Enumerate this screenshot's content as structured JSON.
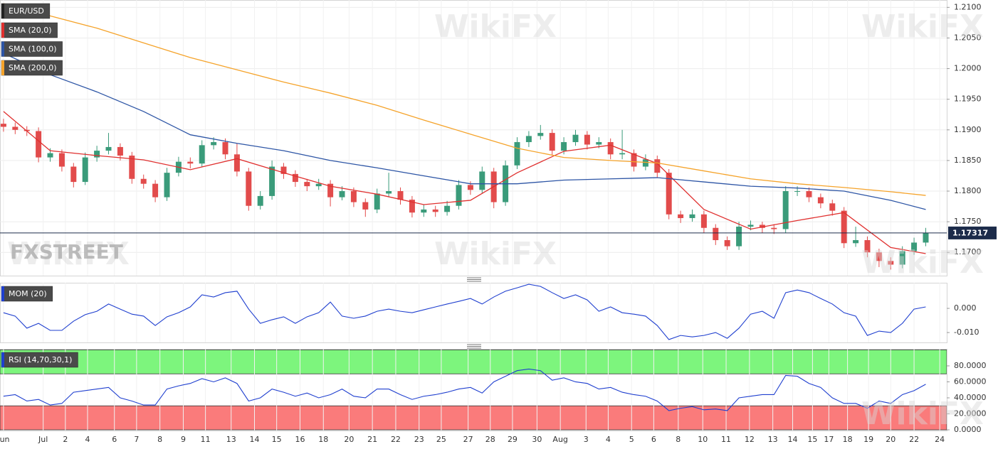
{
  "watermarks": [
    "FXSTREET",
    "WikiFX"
  ],
  "chart_data": [
    {
      "type": "candlestick",
      "title": "EUR/USD",
      "up_color": "#3a9b7a",
      "down_color": "#e24b4b",
      "xlim": [
        -0.3,
        80.8
      ],
      "ylim": [
        1.1662,
        1.2112
      ],
      "yticks": [
        {
          "value": 1.17,
          "label": "1.1700"
        },
        {
          "value": 1.175,
          "label": "1.1750"
        },
        {
          "value": 1.18,
          "label": "1.1800"
        },
        {
          "value": 1.185,
          "label": "1.1850"
        },
        {
          "value": 1.19,
          "label": "1.1900"
        },
        {
          "value": 1.195,
          "label": "1.1950"
        },
        {
          "value": 1.2,
          "label": "1.2000"
        },
        {
          "value": 1.205,
          "label": "1.2050"
        },
        {
          "value": 1.21,
          "label": "1.2100"
        }
      ],
      "grid": true,
      "last_price": {
        "value": 1.17317,
        "label": "1.17317"
      },
      "candles": [
        [
          1.191,
          1.1918,
          1.1897,
          1.1905
        ],
        [
          1.1905,
          1.1912,
          1.1893,
          1.19
        ],
        [
          1.19,
          1.1906,
          1.189,
          1.1898
        ],
        [
          1.1898,
          1.1904,
          1.1847,
          1.1855
        ],
        [
          1.1855,
          1.187,
          1.1848,
          1.1862
        ],
        [
          1.1862,
          1.1868,
          1.1832,
          1.184
        ],
        [
          1.184,
          1.1846,
          1.1806,
          1.1815
        ],
        [
          1.1815,
          1.1863,
          1.181,
          1.1855
        ],
        [
          1.1855,
          1.1874,
          1.1848,
          1.1866
        ],
        [
          1.1866,
          1.1895,
          1.186,
          1.1872
        ],
        [
          1.1872,
          1.1878,
          1.185,
          1.1858
        ],
        [
          1.1858,
          1.1864,
          1.1812,
          1.182
        ],
        [
          1.182,
          1.1827,
          1.1804,
          1.1812
        ],
        [
          1.1812,
          1.1818,
          1.1782,
          1.179
        ],
        [
          1.179,
          1.1838,
          1.1784,
          1.183
        ],
        [
          1.183,
          1.1856,
          1.1824,
          1.1848
        ],
        [
          1.1848,
          1.1855,
          1.1837,
          1.1845
        ],
        [
          1.1845,
          1.1883,
          1.184,
          1.1875
        ],
        [
          1.1875,
          1.1888,
          1.1868,
          1.188
        ],
        [
          1.188,
          1.1886,
          1.1852,
          1.186
        ],
        [
          1.186,
          1.1878,
          1.1824,
          1.1832
        ],
        [
          1.1832,
          1.1838,
          1.1768,
          1.1776
        ],
        [
          1.1776,
          1.18,
          1.177,
          1.1792
        ],
        [
          1.1792,
          1.185,
          1.1786,
          1.184
        ],
        [
          1.184,
          1.1846,
          1.182,
          1.1828
        ],
        [
          1.1828,
          1.1834,
          1.1807,
          1.1815
        ],
        [
          1.1815,
          1.182,
          1.18,
          1.1808
        ],
        [
          1.1808,
          1.182,
          1.1802,
          1.1812
        ],
        [
          1.1812,
          1.1818,
          1.1775,
          1.179
        ],
        [
          1.179,
          1.1808,
          1.1785,
          1.18
        ],
        [
          1.18,
          1.1806,
          1.1774,
          1.1782
        ],
        [
          1.1782,
          1.1788,
          1.1758,
          1.177
        ],
        [
          1.177,
          1.1804,
          1.1764,
          1.1796
        ],
        [
          1.1796,
          1.183,
          1.179,
          1.18
        ],
        [
          1.18,
          1.1806,
          1.1778,
          1.1786
        ],
        [
          1.1786,
          1.1792,
          1.1757,
          1.1765
        ],
        [
          1.1765,
          1.1778,
          1.1758,
          1.177
        ],
        [
          1.177,
          1.1776,
          1.1758,
          1.1766
        ],
        [
          1.1766,
          1.1784,
          1.176,
          1.1776
        ],
        [
          1.1776,
          1.1818,
          1.177,
          1.181
        ],
        [
          1.181,
          1.1816,
          1.1794,
          1.1802
        ],
        [
          1.1802,
          1.184,
          1.1796,
          1.1832
        ],
        [
          1.1832,
          1.1838,
          1.1772,
          1.1782
        ],
        [
          1.1782,
          1.185,
          1.1776,
          1.1842
        ],
        [
          1.1842,
          1.1888,
          1.1836,
          1.188
        ],
        [
          1.188,
          1.1898,
          1.1872,
          1.189
        ],
        [
          1.189,
          1.1908,
          1.1884,
          1.1895
        ],
        [
          1.1895,
          1.1901,
          1.1858,
          1.1866
        ],
        [
          1.1866,
          1.1888,
          1.186,
          1.188
        ],
        [
          1.188,
          1.19,
          1.1874,
          1.1892
        ],
        [
          1.1892,
          1.1898,
          1.1868,
          1.1876
        ],
        [
          1.1876,
          1.1888,
          1.187,
          1.188
        ],
        [
          1.188,
          1.1886,
          1.1852,
          1.186
        ],
        [
          1.186,
          1.19,
          1.1852,
          1.1862
        ],
        [
          1.1862,
          1.1868,
          1.1832,
          1.184
        ],
        [
          1.184,
          1.186,
          1.1834,
          1.1852
        ],
        [
          1.1852,
          1.1858,
          1.1822,
          1.183
        ],
        [
          1.183,
          1.1836,
          1.1754,
          1.1762
        ],
        [
          1.1762,
          1.1768,
          1.1748,
          1.1756
        ],
        [
          1.1756,
          1.177,
          1.175,
          1.1762
        ],
        [
          1.1762,
          1.1768,
          1.1732,
          1.174
        ],
        [
          1.174,
          1.1746,
          1.1712,
          1.172
        ],
        [
          1.172,
          1.1726,
          1.1704,
          1.171
        ],
        [
          1.171,
          1.175,
          1.1704,
          1.1742
        ],
        [
          1.1742,
          1.1752,
          1.1736,
          1.1745
        ],
        [
          1.1745,
          1.175,
          1.1732,
          1.174
        ],
        [
          1.174,
          1.1746,
          1.173,
          1.1738
        ],
        [
          1.1738,
          1.1808,
          1.1732,
          1.18
        ],
        [
          1.18,
          1.1808,
          1.1792,
          1.18
        ],
        [
          1.18,
          1.1806,
          1.1782,
          1.179
        ],
        [
          1.179,
          1.1796,
          1.1772,
          1.178
        ],
        [
          1.178,
          1.1786,
          1.176,
          1.1768
        ],
        [
          1.1768,
          1.1774,
          1.1707,
          1.1715
        ],
        [
          1.1715,
          1.1742,
          1.1709,
          1.172
        ],
        [
          1.172,
          1.1726,
          1.1692,
          1.17
        ],
        [
          1.17,
          1.1706,
          1.1676,
          1.1686
        ],
        [
          1.1686,
          1.1692,
          1.1672,
          1.168
        ],
        [
          1.168,
          1.171,
          1.1674,
          1.1702
        ],
        [
          1.1702,
          1.1724,
          1.1696,
          1.1716
        ],
        [
          1.1716,
          1.174,
          1.171,
          1.1732
        ]
      ],
      "series": [
        {
          "name": "SMA (20,0)",
          "color": "#e0302f",
          "x": [
            0,
            4,
            8,
            12,
            16,
            20,
            24,
            28,
            32,
            36,
            40,
            44,
            48,
            52,
            56,
            60,
            64,
            68,
            72,
            76,
            79
          ],
          "values": [
            1.193,
            1.1866,
            1.1858,
            1.1851,
            1.1835,
            1.1853,
            1.183,
            1.1808,
            1.1795,
            1.1778,
            1.1785,
            1.183,
            1.1865,
            1.1875,
            1.1845,
            1.177,
            1.1738,
            1.1752,
            1.1765,
            1.1708,
            1.1698
          ]
        },
        {
          "name": "SMA (100,0)",
          "color": "#2d55a5",
          "x": [
            0,
            4,
            8,
            12,
            16,
            20,
            24,
            28,
            32,
            36,
            40,
            44,
            48,
            52,
            56,
            60,
            64,
            68,
            72,
            76,
            79
          ],
          "values": [
            1.2025,
            1.199,
            1.1962,
            1.193,
            1.1892,
            1.1878,
            1.1866,
            1.185,
            1.1838,
            1.1825,
            1.1812,
            1.1812,
            1.1818,
            1.182,
            1.1822,
            1.1815,
            1.1808,
            1.1805,
            1.18,
            1.1785,
            1.177
          ]
        },
        {
          "name": "SMA (200,0)",
          "color": "#f5a32a",
          "x": [
            0,
            4,
            8,
            12,
            16,
            20,
            24,
            28,
            32,
            36,
            40,
            44,
            48,
            52,
            56,
            60,
            64,
            68,
            72,
            76,
            79
          ],
          "values": [
            1.2106,
            1.2086,
            1.2066,
            1.2042,
            1.2018,
            1.1998,
            1.1978,
            1.196,
            1.194,
            1.1916,
            1.1893,
            1.187,
            1.1855,
            1.185,
            1.1846,
            1.1833,
            1.182,
            1.1812,
            1.1806,
            1.1799,
            1.1793
          ]
        }
      ]
    },
    {
      "type": "line",
      "xlim": [
        -0.3,
        80.8
      ],
      "ylim": [
        -0.0141,
        0.0106
      ],
      "yticks": [
        {
          "value": 0,
          "label": "0.000"
        },
        {
          "value": -0.01,
          "label": "-0.010"
        }
      ],
      "series": [
        {
          "name": "MOM (20)",
          "color": "#1f3fcf",
          "values": [
            -0.0018,
            -0.0032,
            -0.0082,
            -0.0062,
            -0.0091,
            -0.0091,
            -0.0053,
            -0.0026,
            -0.0012,
            0.0018,
            -0.0003,
            -0.0024,
            -0.0032,
            -0.0071,
            -0.0035,
            -0.0018,
            0.0006,
            0.0056,
            0.0047,
            0.0065,
            0.0071,
            -0.0003,
            -0.0062,
            -0.0047,
            -0.0035,
            -0.0062,
            -0.0035,
            -0.0018,
            0.0026,
            -0.0032,
            -0.0041,
            -0.0032,
            -0.0012,
            -0.0003,
            -0.0012,
            -0.0018,
            -0.0006,
            0.0006,
            0.0018,
            0.0029,
            0.0041,
            0.0018,
            0.0047,
            0.0071,
            0.0085,
            0.01,
            0.0091,
            0.0065,
            0.0041,
            0.0056,
            0.0035,
            -0.0012,
            0.0006,
            -0.0018,
            -0.0024,
            -0.0032,
            -0.0071,
            -0.0129,
            -0.0112,
            -0.0118,
            -0.0112,
            -0.01,
            -0.0124,
            -0.0082,
            -0.0024,
            -0.0012,
            -0.0041,
            0.0065,
            0.0076,
            0.0065,
            0.0041,
            0.0018,
            -0.0018,
            -0.0032,
            -0.0112,
            -0.0094,
            -0.01,
            -0.0062,
            -0.0003,
            0.0006
          ]
        }
      ]
    },
    {
      "type": "line",
      "xlim": [
        -0.3,
        80.8
      ],
      "ylim": [
        -0.9,
        101.3
      ],
      "yticks": [
        {
          "value": 0,
          "label": "0.0000"
        },
        {
          "value": 20,
          "label": "20.0000"
        },
        {
          "value": 40,
          "label": "40.0000"
        },
        {
          "value": 60,
          "label": "60.0000"
        },
        {
          "value": 80,
          "label": "80.0000"
        }
      ],
      "bands": [
        {
          "from": 70,
          "to": 100,
          "color": "#7df57d"
        },
        {
          "from": 0,
          "to": 30,
          "color": "#fa7b7b"
        }
      ],
      "xticks": [
        {
          "value": 0,
          "label": "Jun"
        },
        {
          "value": 3.4,
          "label": "Jul"
        },
        {
          "value": 5.3,
          "label": "2"
        },
        {
          "value": 7.2,
          "label": "4"
        },
        {
          "value": 9.5,
          "label": "6"
        },
        {
          "value": 11.4,
          "label": "7"
        },
        {
          "value": 13.4,
          "label": "8"
        },
        {
          "value": 15.4,
          "label": "9"
        },
        {
          "value": 17.3,
          "label": "11"
        },
        {
          "value": 19.5,
          "label": "13"
        },
        {
          "value": 21.5,
          "label": "14"
        },
        {
          "value": 23.4,
          "label": "15"
        },
        {
          "value": 25.4,
          "label": "16"
        },
        {
          "value": 27.4,
          "label": "18"
        },
        {
          "value": 29.6,
          "label": "20"
        },
        {
          "value": 31.6,
          "label": "21"
        },
        {
          "value": 33.6,
          "label": "22"
        },
        {
          "value": 35.6,
          "label": "23"
        },
        {
          "value": 37.5,
          "label": "25"
        },
        {
          "value": 39.8,
          "label": "27"
        },
        {
          "value": 41.7,
          "label": "28"
        },
        {
          "value": 43.6,
          "label": "29"
        },
        {
          "value": 45.7,
          "label": "30"
        },
        {
          "value": 47.7,
          "label": "Aug"
        },
        {
          "value": 49.9,
          "label": "3"
        },
        {
          "value": 51.8,
          "label": "4"
        },
        {
          "value": 53.8,
          "label": "5"
        },
        {
          "value": 55.7,
          "label": "6"
        },
        {
          "value": 57.8,
          "label": "8"
        },
        {
          "value": 59.9,
          "label": "10"
        },
        {
          "value": 61.9,
          "label": "11"
        },
        {
          "value": 63.9,
          "label": "12"
        },
        {
          "value": 65.9,
          "label": "13"
        },
        {
          "value": 67.6,
          "label": "14"
        },
        {
          "value": 69.3,
          "label": "15"
        },
        {
          "value": 70.7,
          "label": "17"
        },
        {
          "value": 72.3,
          "label": "18"
        },
        {
          "value": 74.1,
          "label": "19"
        },
        {
          "value": 76.0,
          "label": "20"
        },
        {
          "value": 78.0,
          "label": "22"
        },
        {
          "value": 80.2,
          "label": "24"
        }
      ],
      "series": [
        {
          "name": "RSI (14,70,30,1)",
          "color": "#1f3fcf",
          "values": [
            42,
            44,
            36,
            38,
            31,
            33,
            47,
            49,
            51,
            53,
            40,
            36,
            31,
            31,
            51,
            55,
            58,
            64,
            60,
            65,
            58,
            36,
            40,
            51,
            47,
            42,
            46,
            40,
            44,
            51,
            42,
            40,
            51,
            51,
            44,
            38,
            42,
            44,
            47,
            51,
            53,
            46,
            60,
            67,
            74,
            76,
            74,
            62,
            65,
            60,
            58,
            51,
            53,
            47,
            44,
            42,
            36,
            24,
            27,
            29,
            25,
            26,
            24,
            40,
            42,
            44,
            44,
            68,
            67,
            58,
            53,
            40,
            33,
            33,
            27,
            36,
            33,
            44,
            49,
            57
          ]
        }
      ]
    }
  ]
}
